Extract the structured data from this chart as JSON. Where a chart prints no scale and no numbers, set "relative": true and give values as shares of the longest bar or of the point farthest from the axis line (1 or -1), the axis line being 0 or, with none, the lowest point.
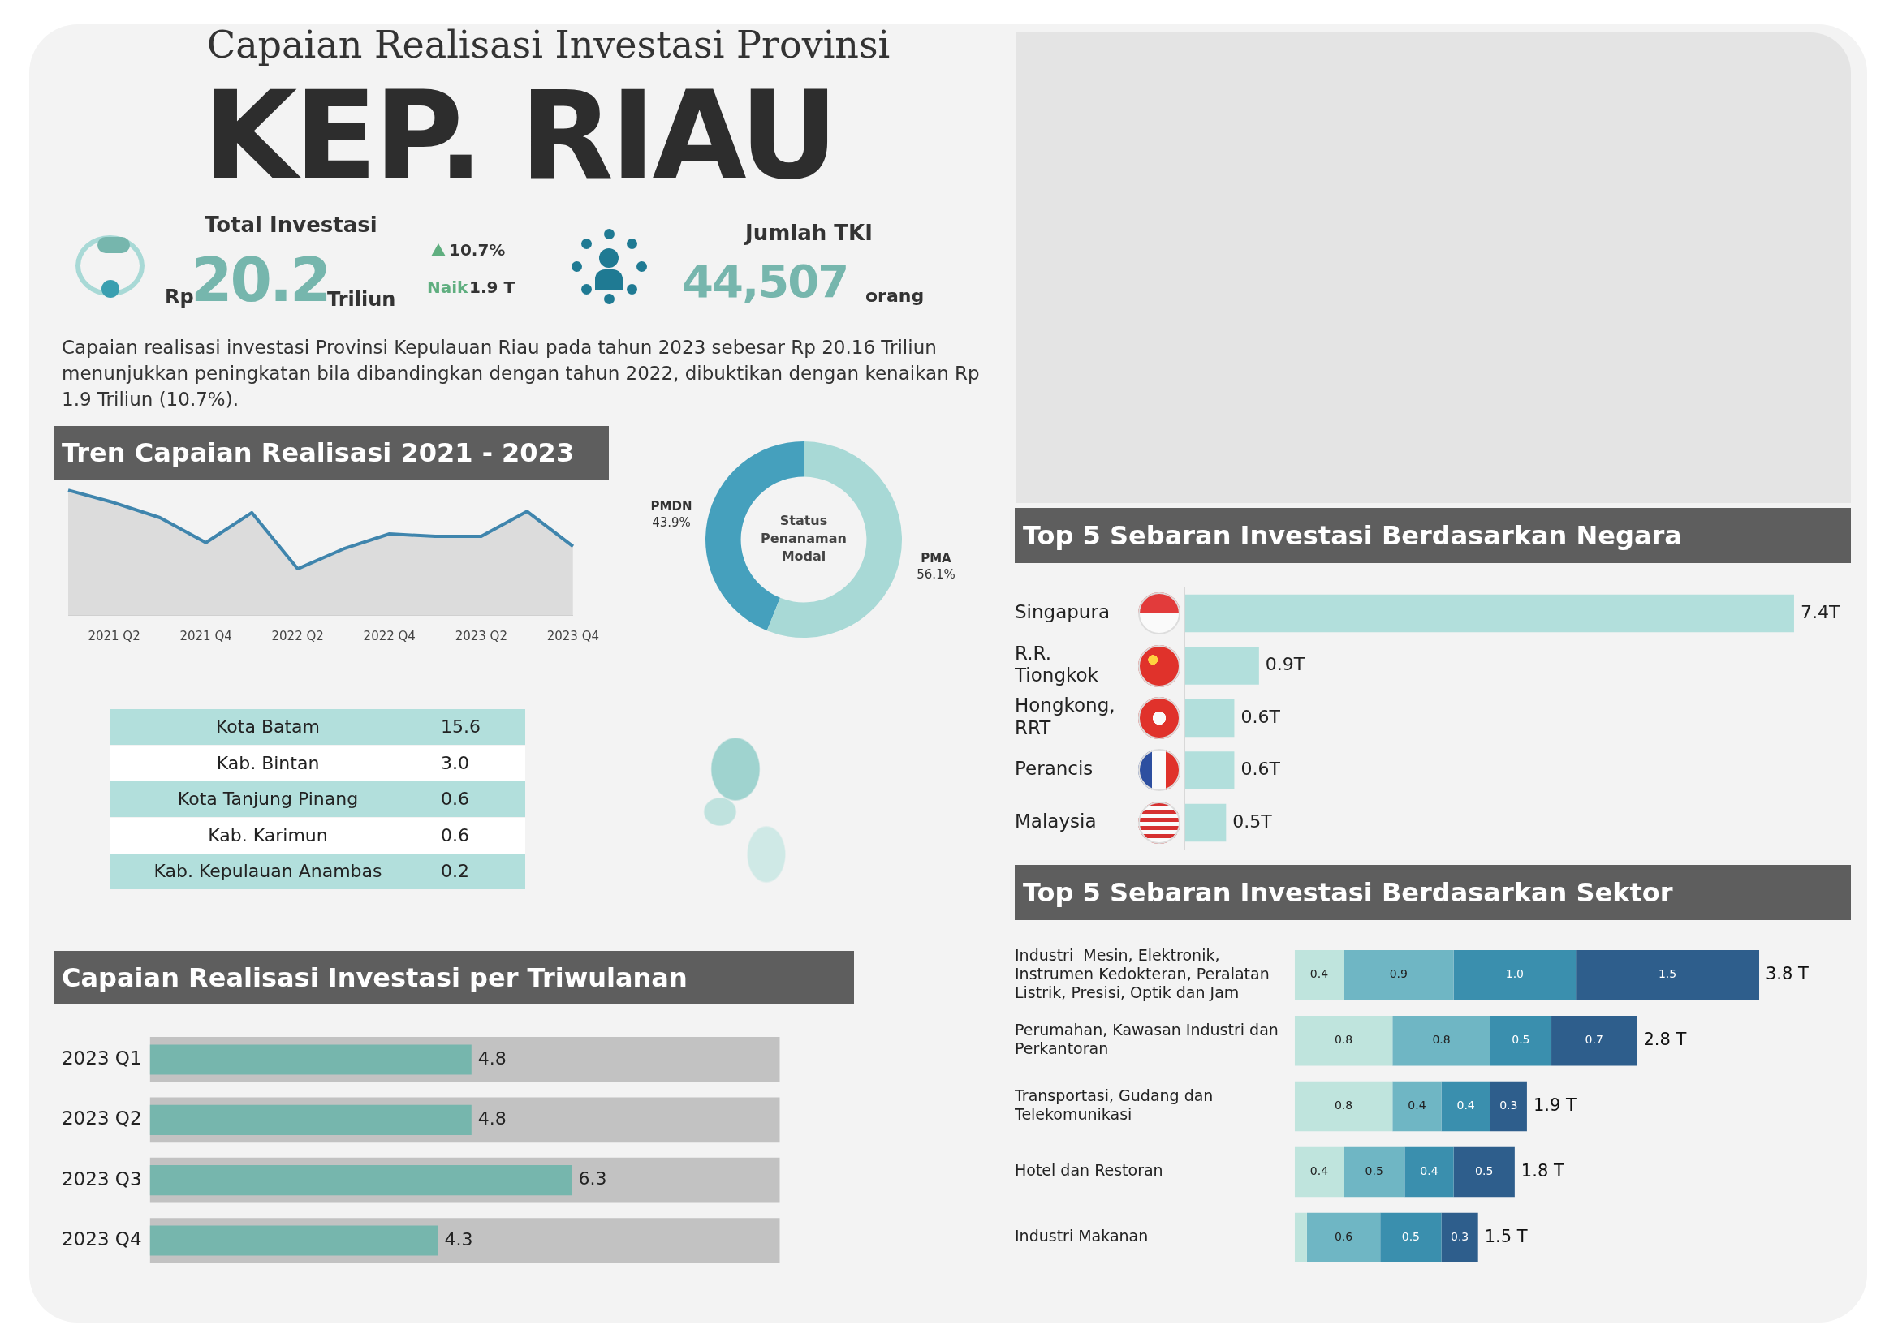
{
  "chart_data": [
    {
      "type": "other",
      "title": "Capaian Realisasi Investasi Provinsi",
      "subtitle": "KEP. RIAU",
      "annotations": [
        "Total Investasi",
        "Rp",
        "20.2",
        "Triliun",
        "10.7%",
        "Naik",
        "1.9 T",
        "Jumlah TKI",
        "44,507",
        "orang",
        "Capaian realisasi investasi Provinsi Kepulauan Riau pada tahun 2023 sebesar  Rp 20.16 Triliun menunjukkan  peningkatan bila dibandingkan dengan tahun 2022, dibuktikan dengan kenaikan Rp 1.9 Triliun (10.7%)."
      ]
    },
    {
      "type": "area",
      "title": "Tren Capaian Realisasi 2021 - 2023",
      "categories": [
        null,
        "2021 Q2",
        null,
        "2021 Q4",
        null,
        "2022 Q2",
        null,
        "2022 Q4",
        null,
        "2023 Q2",
        null,
        "2023 Q4"
      ],
      "relative": true,
      "color": "#3f85ad",
      "values": [
        1,
        0.9,
        0.78,
        0.58,
        0.82,
        0.37,
        0.53,
        0.65,
        0.63,
        0.63,
        0.83,
        0.55
      ]
    },
    {
      "type": "donut",
      "title": "Status Penanaman Modal",
      "categories": [
        "PMDN",
        "PMA"
      ],
      "values": [
        43.9,
        56.1
      ],
      "value_labels": [
        "43.9%",
        "56.1%"
      ],
      "colors": [
        "#45a0bd",
        "#a8d9d6"
      ]
    },
    {
      "type": "other",
      "categories": [
        "Kota Batam",
        "Kab. Bintan",
        "Kota Tanjung Pinang",
        "Kab. Karimun",
        "Kab. Kepulauan Anambas"
      ],
      "value_labels": [
        "15.6",
        "3.0",
        "0.6",
        "0.6",
        "0.2"
      ]
    },
    {
      "type": "bar",
      "orientation": "horizontal",
      "title": "Top 5 Sebaran Investasi Berdasarkan Negara",
      "categories": [
        "Singapura",
        "R.R. Tiongkok",
        "Hongkong, RRT",
        "Perancis",
        "Malaysia"
      ],
      "values": [
        7.4,
        0.9,
        0.6,
        0.6,
        0.5
      ],
      "value_labels": [
        "7.4T",
        "0.9T",
        "0.6T",
        "0.6T",
        "0.5T"
      ],
      "color": "#b2dfdc"
    },
    {
      "type": "bar",
      "orientation": "horizontal",
      "stacked": true,
      "title": "Top 5 Sebaran Investasi Berdasarkan Sektor",
      "categories": [
        "Industri  Mesin, Elektronik, Instrumen Kedokteran, Peralatan Listrik, Presisi, Optik dan Jam",
        "Perumahan, Kawasan Industri dan Perkantoran",
        "Transportasi, Gudang dan Telekomunikasi",
        "Hotel dan Restoran",
        "Industri Makanan"
      ],
      "totals": [
        "3.8 T",
        "2.8 T",
        "1.9 T",
        "1.8 T",
        "1.5 T"
      ],
      "series": [
        {
          "color": "#bfe4dd",
          "values": [
            0.4,
            0.8,
            0.8,
            0.4,
            0.1
          ],
          "value_labels": [
            "0.4",
            "0.8",
            "0.8",
            "0.4",
            null
          ]
        },
        {
          "color": "#6fb6c4",
          "values": [
            0.9,
            0.8,
            0.4,
            0.5,
            0.6
          ],
          "value_labels": [
            "0.9",
            "0.8",
            "0.4",
            "0.5",
            "0.6"
          ]
        },
        {
          "color": "#3a8fae",
          "values": [
            1.0,
            0.5,
            0.4,
            0.4,
            0.5
          ],
          "value_labels": [
            "1.0",
            "0.5",
            "0.4",
            "0.4",
            "0.5"
          ]
        },
        {
          "color": "#2e5e8c",
          "values": [
            1.5,
            0.7,
            0.3,
            0.5,
            0.3
          ],
          "value_labels": [
            "1.5",
            "0.7",
            "0.3",
            "0.5",
            "0.3"
          ]
        }
      ]
    },
    {
      "type": "bar",
      "orientation": "horizontal",
      "title": "Capaian Realisasi Investasi per Triwulanan",
      "categories": [
        "2023 Q1",
        "2023 Q2",
        "2023 Q3",
        "2023 Q4"
      ],
      "series": [
        {
          "color": "#76b6ad",
          "values": [
            4.8,
            4.8,
            6.3,
            4.3
          ],
          "value_labels": [
            "4.8",
            "4.8",
            "6.3",
            "4.3"
          ]
        },
        {
          "color": "#c2c2c2",
          "values": [
            9.4,
            9.4,
            9.4,
            9.4
          ]
        }
      ]
    }
  ]
}
